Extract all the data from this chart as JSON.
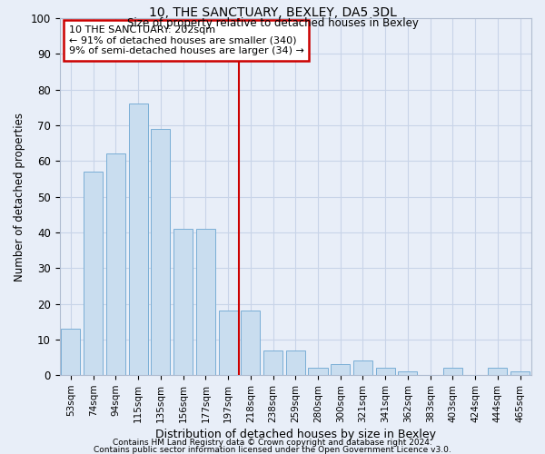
{
  "title1": "10, THE SANCTUARY, BEXLEY, DA5 3DL",
  "title2": "Size of property relative to detached houses in Bexley",
  "xlabel": "Distribution of detached houses by size in Bexley",
  "ylabel": "Number of detached properties",
  "categories": [
    "53sqm",
    "74sqm",
    "94sqm",
    "115sqm",
    "135sqm",
    "156sqm",
    "177sqm",
    "197sqm",
    "218sqm",
    "238sqm",
    "259sqm",
    "280sqm",
    "300sqm",
    "321sqm",
    "341sqm",
    "362sqm",
    "383sqm",
    "403sqm",
    "424sqm",
    "444sqm",
    "465sqm"
  ],
  "values": [
    13,
    57,
    62,
    76,
    69,
    41,
    41,
    18,
    18,
    7,
    7,
    2,
    3,
    4,
    2,
    1,
    0,
    2,
    0,
    2,
    1
  ],
  "bar_color": "#c9ddef",
  "bar_edge_color": "#7aaed6",
  "property_bin_index": 7,
  "annotation_text": "10 THE SANCTUARY: 202sqm\n← 91% of detached houses are smaller (340)\n9% of semi-detached houses are larger (34) →",
  "annotation_box_color": "white",
  "annotation_box_edge_color": "#cc0000",
  "vline_color": "#cc0000",
  "ylim": [
    0,
    100
  ],
  "yticks": [
    0,
    10,
    20,
    30,
    40,
    50,
    60,
    70,
    80,
    90,
    100
  ],
  "grid_color": "#c8d4e8",
  "background_color": "#e8eef8",
  "footnote1": "Contains HM Land Registry data © Crown copyright and database right 2024.",
  "footnote2": "Contains public sector information licensed under the Open Government Licence v3.0."
}
